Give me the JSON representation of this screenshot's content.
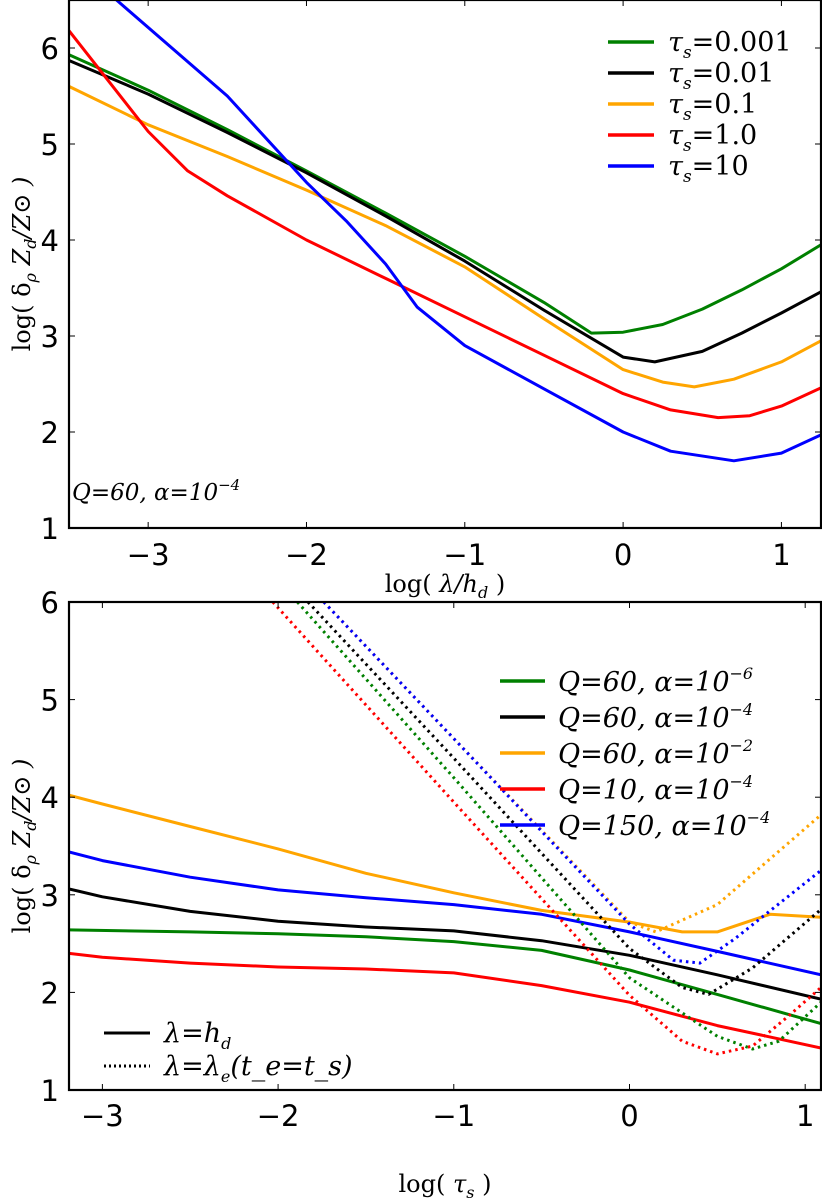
{
  "chart_data": [
    {
      "type": "line",
      "panel": "top",
      "title": "",
      "xlabel": "log( λ/h_d )",
      "ylabel": "log( δ_ρ Z_d/Z_⊙ )",
      "xlim": [
        -3.5,
        1.25
      ],
      "ylim": [
        1,
        6.5
      ],
      "xticks": [
        -3,
        -2,
        -1,
        0,
        1
      ],
      "yticks": [
        1,
        2,
        3,
        4,
        5,
        6
      ],
      "grid": false,
      "legend_position": "upper right",
      "annotation": "Q=60, α=10^-4",
      "series": [
        {
          "name": "τ_s=0.001",
          "color": "#008000",
          "style": "solid",
          "points": [
            [
              -3.5,
              5.93
            ],
            [
              -3,
              5.56
            ],
            [
              -2.5,
              5.15
            ],
            [
              -2,
              4.72
            ],
            [
              -1.5,
              4.28
            ],
            [
              -1,
              3.83
            ],
            [
              -0.5,
              3.35
            ],
            [
              -0.2,
              3.03
            ],
            [
              0,
              3.04
            ],
            [
              0.25,
              3.12
            ],
            [
              0.5,
              3.28
            ],
            [
              0.75,
              3.48
            ],
            [
              1.0,
              3.7
            ],
            [
              1.25,
              3.95
            ]
          ]
        },
        {
          "name": "τ_s=0.01",
          "color": "#000000",
          "style": "solid",
          "points": [
            [
              -3.5,
              5.87
            ],
            [
              -3,
              5.52
            ],
            [
              -2.5,
              5.12
            ],
            [
              -2,
              4.7
            ],
            [
              -1.5,
              4.25
            ],
            [
              -1,
              3.78
            ],
            [
              -0.5,
              3.27
            ],
            [
              0,
              2.78
            ],
            [
              0.2,
              2.73
            ],
            [
              0.5,
              2.84
            ],
            [
              0.75,
              3.03
            ],
            [
              1.0,
              3.24
            ],
            [
              1.25,
              3.46
            ]
          ]
        },
        {
          "name": "τ_s=0.1",
          "color": "#FFA500",
          "style": "solid",
          "points": [
            [
              -3.5,
              5.6
            ],
            [
              -3,
              5.2
            ],
            [
              -2.5,
              4.87
            ],
            [
              -2,
              4.52
            ],
            [
              -1.5,
              4.15
            ],
            [
              -1,
              3.72
            ],
            [
              -0.5,
              3.18
            ],
            [
              0,
              2.65
            ],
            [
              0.25,
              2.52
            ],
            [
              0.45,
              2.47
            ],
            [
              0.7,
              2.55
            ],
            [
              1.0,
              2.73
            ],
            [
              1.25,
              2.95
            ]
          ]
        },
        {
          "name": "τ_s=1.0",
          "color": "#FF0000",
          "style": "solid",
          "points": [
            [
              -3.5,
              6.18
            ],
            [
              -3,
              5.13
            ],
            [
              -2.75,
              4.72
            ],
            [
              -2.5,
              4.46
            ],
            [
              -2,
              4.0
            ],
            [
              -1.5,
              3.6
            ],
            [
              -1,
              3.2
            ],
            [
              -0.5,
              2.8
            ],
            [
              0,
              2.4
            ],
            [
              0.3,
              2.23
            ],
            [
              0.6,
              2.15
            ],
            [
              0.8,
              2.17
            ],
            [
              1.0,
              2.27
            ],
            [
              1.25,
              2.46
            ]
          ]
        },
        {
          "name": "τ_s=10",
          "color": "#0000FF",
          "style": "solid",
          "points": [
            [
              -3.2,
              6.5
            ],
            [
              -2.5,
              5.5
            ],
            [
              -2,
              4.6
            ],
            [
              -1.75,
              4.2
            ],
            [
              -1.5,
              3.75
            ],
            [
              -1.3,
              3.3
            ],
            [
              -1,
              2.9
            ],
            [
              -0.5,
              2.45
            ],
            [
              0,
              2.0
            ],
            [
              0.3,
              1.8
            ],
            [
              0.7,
              1.7
            ],
            [
              1.0,
              1.78
            ],
            [
              1.25,
              1.97
            ]
          ]
        }
      ]
    },
    {
      "type": "line",
      "panel": "bottom",
      "title": "",
      "xlabel": "log( τ_s )",
      "ylabel": "log( δ_ρ Z_d/Z_⊙ )",
      "xlim": [
        -3.19,
        1.09
      ],
      "ylim": [
        1,
        6
      ],
      "xticks": [
        -3,
        -2,
        -1,
        0,
        1
      ],
      "yticks": [
        1,
        2,
        3,
        4,
        5,
        6
      ],
      "grid": false,
      "legend_position": "upper right",
      "style_legend": [
        {
          "label": "λ=h_d",
          "style": "solid"
        },
        {
          "label": "λ=λ_e(t_e=t_s)",
          "style": "dotted"
        }
      ],
      "series": [
        {
          "name": "Q=60, α=10^-6",
          "color": "#008000",
          "style": "solid",
          "points": [
            [
              -3.19,
              2.64
            ],
            [
              -2.5,
              2.62
            ],
            [
              -2,
              2.6
            ],
            [
              -1.5,
              2.57
            ],
            [
              -1,
              2.52
            ],
            [
              -0.5,
              2.43
            ],
            [
              0,
              2.23
            ],
            [
              0.5,
              1.98
            ],
            [
              1.09,
              1.68
            ]
          ]
        },
        {
          "name": "Q=60, α=10^-4",
          "color": "#000000",
          "style": "solid",
          "points": [
            [
              -3.19,
              3.06
            ],
            [
              -3,
              2.98
            ],
            [
              -2.5,
              2.83
            ],
            [
              -2,
              2.73
            ],
            [
              -1.5,
              2.67
            ],
            [
              -1,
              2.63
            ],
            [
              -0.5,
              2.53
            ],
            [
              0,
              2.38
            ],
            [
              0.5,
              2.18
            ],
            [
              1.09,
              1.93
            ]
          ]
        },
        {
          "name": "Q=60, α=10^-2",
          "color": "#FFA500",
          "style": "solid",
          "points": [
            [
              -3.19,
              4.02
            ],
            [
              -3,
              3.93
            ],
            [
              -2.5,
              3.7
            ],
            [
              -2,
              3.47
            ],
            [
              -1.5,
              3.22
            ],
            [
              -1,
              3.02
            ],
            [
              -0.5,
              2.84
            ],
            [
              0,
              2.72
            ],
            [
              0.3,
              2.62
            ],
            [
              0.5,
              2.62
            ],
            [
              0.8,
              2.8
            ],
            [
              1.09,
              2.77
            ]
          ]
        },
        {
          "name": "Q=10, α=10^-4",
          "color": "#FF0000",
          "style": "solid",
          "points": [
            [
              -3.19,
              2.4
            ],
            [
              -3,
              2.36
            ],
            [
              -2.5,
              2.3
            ],
            [
              -2,
              2.26
            ],
            [
              -1.5,
              2.24
            ],
            [
              -1,
              2.2
            ],
            [
              -0.5,
              2.07
            ],
            [
              0,
              1.9
            ],
            [
              0.5,
              1.66
            ],
            [
              1.09,
              1.43
            ]
          ]
        },
        {
          "name": "Q=150, α=10^-4",
          "color": "#0000FF",
          "style": "solid",
          "points": [
            [
              -3.19,
              3.44
            ],
            [
              -3,
              3.35
            ],
            [
              -2.5,
              3.18
            ],
            [
              -2,
              3.05
            ],
            [
              -1.5,
              2.97
            ],
            [
              -1,
              2.9
            ],
            [
              -0.5,
              2.8
            ],
            [
              0,
              2.62
            ],
            [
              0.5,
              2.42
            ],
            [
              1.09,
              2.18
            ]
          ]
        },
        {
          "name": "Q=60, α=10^-6 (λ_e)",
          "color": "#008000",
          "style": "dotted",
          "points": [
            [
              -1.89,
              6
            ],
            [
              -1,
              4.2
            ],
            [
              0,
              2.15
            ],
            [
              0.5,
              1.55
            ],
            [
              0.7,
              1.42
            ],
            [
              0.85,
              1.5
            ],
            [
              1.09,
              1.9
            ]
          ]
        },
        {
          "name": "Q=60, α=10^-4 (λ_e)",
          "color": "#000000",
          "style": "dotted",
          "points": [
            [
              -1.83,
              6
            ],
            [
              -1,
              4.4
            ],
            [
              0,
              2.45
            ],
            [
              0.3,
              2.05
            ],
            [
              0.45,
              1.98
            ],
            [
              0.7,
              2.25
            ],
            [
              1.09,
              2.85
            ]
          ]
        },
        {
          "name": "Q=60, α=10^-2 (λ_e)",
          "color": "#FFA500",
          "style": "dotted",
          "points": [
            [
              -1.74,
              6
            ],
            [
              -1,
              4.6
            ],
            [
              0,
              2.72
            ],
            [
              0.15,
              2.62
            ],
            [
              0.5,
              2.9
            ],
            [
              1.09,
              3.82
            ]
          ]
        },
        {
          "name": "Q=10, α=10^-4 (λ_e)",
          "color": "#FF0000",
          "style": "dotted",
          "points": [
            [
              -2.03,
              6
            ],
            [
              -1,
              3.95
            ],
            [
              0,
              1.97
            ],
            [
              0.3,
              1.5
            ],
            [
              0.5,
              1.37
            ],
            [
              0.7,
              1.45
            ],
            [
              0.9,
              1.75
            ],
            [
              1.09,
              2.05
            ]
          ]
        },
        {
          "name": "Q=150, α=10^-4 (λ_e)",
          "color": "#0000FF",
          "style": "dotted",
          "points": [
            [
              -1.74,
              6
            ],
            [
              -1,
              4.6
            ],
            [
              0,
              2.7
            ],
            [
              0.25,
              2.33
            ],
            [
              0.4,
              2.3
            ],
            [
              0.6,
              2.55
            ],
            [
              1.09,
              3.25
            ]
          ]
        }
      ]
    }
  ],
  "panels": {
    "top": {
      "xlabel_main": "log(",
      "xlabel_var": "λ/h",
      "xlabel_sub": "d",
      "xlabel_close": ")",
      "annotation_main": "Q=60, α=10",
      "annotation_exp": "−4",
      "legend": [
        {
          "label": "τ",
          "sub": "s",
          "value": "=0.001",
          "color": "#008000"
        },
        {
          "label": "τ",
          "sub": "s",
          "value": "=0.01",
          "color": "#000000"
        },
        {
          "label": "τ",
          "sub": "s",
          "value": "=0.1",
          "color": "#FFA500"
        },
        {
          "label": "τ",
          "sub": "s",
          "value": "=1.0",
          "color": "#FF0000"
        },
        {
          "label": "τ",
          "sub": "s",
          "value": "=10",
          "color": "#0000FF"
        }
      ]
    },
    "bottom": {
      "xlabel_main": "log(",
      "xlabel_var": "τ",
      "xlabel_sub": "s",
      "xlabel_close": ")",
      "legend": [
        {
          "text": "Q=60, α=10",
          "exp": "−6",
          "color": "#008000"
        },
        {
          "text": "Q=60, α=10",
          "exp": "−4",
          "color": "#000000"
        },
        {
          "text": "Q=60, α=10",
          "exp": "−2",
          "color": "#FFA500"
        },
        {
          "text": "Q=10, α=10",
          "exp": "−4",
          "color": "#FF0000"
        },
        {
          "text": "Q=150, α=10",
          "exp": "−4",
          "color": "#0000FF"
        }
      ],
      "style_legend": [
        {
          "text": "λ=h",
          "sub": "d",
          "tail": "",
          "style": "solid"
        },
        {
          "text": "λ=λ",
          "sub": "e",
          "tail": "(t_e=t_s)",
          "style": "dotted"
        }
      ]
    },
    "ylabel": "log( δ",
    "ylabel_sub": "ρ",
    "ylabel_rest": " Z",
    "ylabel_sub2": "d",
    "ylabel_end": "/Z⊙ )"
  }
}
